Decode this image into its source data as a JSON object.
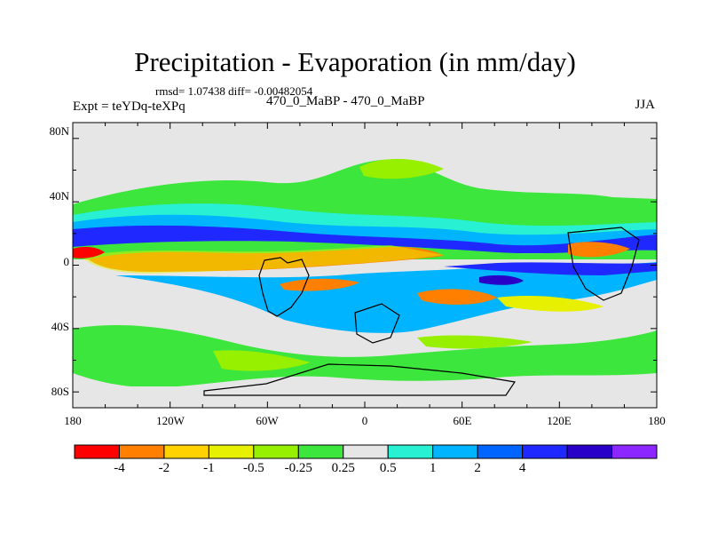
{
  "title": "Precipitation - Evaporation (in mm/day)",
  "stats": "rmsd= 1.07438  diff= -0.00482054",
  "experiment": "Expt = teYDq-teXPq",
  "case": "470_0_MaBP - 470_0_MaBP",
  "season": "JJA",
  "lat_ticks": [
    "80N",
    "40N",
    "0",
    "40S",
    "80S"
  ],
  "lon_ticks": [
    "180",
    "120W",
    "60W",
    "0",
    "60E",
    "120E",
    "180"
  ],
  "colorbar": {
    "colors": [
      "#ff0000",
      "#ff8000",
      "#ffd200",
      "#e6f000",
      "#96f000",
      "#3ce63c",
      "#e6e6e6",
      "#28f0d2",
      "#00b4ff",
      "#0064ff",
      "#1e28ff",
      "#2800c8",
      "#8c28ff"
    ],
    "labels": [
      "-4",
      "-2",
      "-1",
      "-0.5",
      "-0.25",
      "0.25",
      "0.5",
      "1",
      "2",
      "4"
    ]
  },
  "chart_data": {
    "type": "heatmap",
    "title": "Precipitation - Evaporation (in mm/day)",
    "units": "mm/day",
    "x_range": [
      -180,
      180
    ],
    "y_range": [
      -90,
      90
    ],
    "contour_levels": [
      -4,
      -2,
      -1,
      -0.5,
      -0.25,
      0.25,
      0.5,
      1,
      2,
      4
    ]
  }
}
